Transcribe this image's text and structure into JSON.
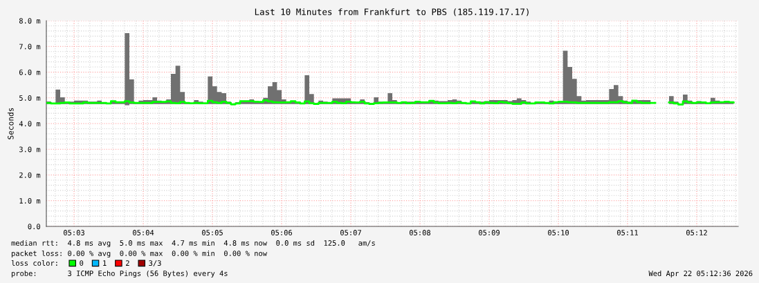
{
  "chart_data": {
    "type": "step",
    "title": "Last 10 Minutes from Frankfurt to PBS (185.119.17.17)",
    "ylabel": "Seconds",
    "xlim": [
      5.04333,
      5.21
    ],
    "ylim": [
      0,
      8
    ],
    "xticks": [
      {
        "value": 5.05,
        "label": "05:03"
      },
      {
        "value": 5.06667,
        "label": "05:04"
      },
      {
        "value": 5.08333,
        "label": "05:05"
      },
      {
        "value": 5.1,
        "label": "05:06"
      },
      {
        "value": 5.11667,
        "label": "05:07"
      },
      {
        "value": 5.13333,
        "label": "05:08"
      },
      {
        "value": 5.15,
        "label": "05:09"
      },
      {
        "value": 5.16667,
        "label": "05:10"
      },
      {
        "value": 5.18333,
        "label": "05:11"
      },
      {
        "value": 5.2,
        "label": "05:12"
      }
    ],
    "yticks": [
      {
        "value": 0,
        "label": "0.0"
      },
      {
        "value": 1,
        "label": "1.0 m"
      },
      {
        "value": 2,
        "label": "2.0 m"
      },
      {
        "value": 3,
        "label": "3.0 m"
      },
      {
        "value": 4,
        "label": "4.0 m"
      },
      {
        "value": 5,
        "label": "5.0 m"
      },
      {
        "value": 6,
        "label": "6.0 m"
      },
      {
        "value": 7,
        "label": "7.0 m"
      },
      {
        "value": 8,
        "label": "8.0 m"
      }
    ],
    "grid": true,
    "legend": "bottom left",
    "legend_title": "loss color:",
    "x": [
      5.04333,
      5.04444,
      5.04556,
      5.04667,
      5.04778,
      5.04889,
      5.05,
      5.05111,
      5.05222,
      5.05333,
      5.05444,
      5.05556,
      5.05667,
      5.05778,
      5.05889,
      5.06,
      5.06111,
      5.06222,
      5.06333,
      5.06444,
      5.06556,
      5.06667,
      5.06778,
      5.06889,
      5.07,
      5.07111,
      5.07222,
      5.07333,
      5.07444,
      5.07556,
      5.07667,
      5.07778,
      5.07889,
      5.08,
      5.08111,
      5.08222,
      5.08333,
      5.08444,
      5.08556,
      5.08667,
      5.08778,
      5.08889,
      5.09,
      5.09111,
      5.09222,
      5.09333,
      5.09444,
      5.09556,
      5.09667,
      5.09778,
      5.09889,
      5.1,
      5.10111,
      5.10222,
      5.10333,
      5.10444,
      5.10556,
      5.10667,
      5.10778,
      5.10889,
      5.11,
      5.11111,
      5.11222,
      5.11333,
      5.11444,
      5.11556,
      5.11667,
      5.11778,
      5.11889,
      5.12,
      5.12111,
      5.12222,
      5.12333,
      5.12444,
      5.12556,
      5.12667,
      5.12778,
      5.12889,
      5.13,
      5.13111,
      5.13222,
      5.13333,
      5.13444,
      5.13556,
      5.13667,
      5.13778,
      5.13889,
      5.14,
      5.14111,
      5.14222,
      5.14333,
      5.14444,
      5.14556,
      5.14667,
      5.14778,
      5.14889,
      5.15,
      5.15111,
      5.15222,
      5.15333,
      5.15444,
      5.15556,
      5.15667,
      5.15778,
      5.15889,
      5.16,
      5.16111,
      5.16222,
      5.16333,
      5.16444,
      5.16556,
      5.16667,
      5.16778,
      5.16889,
      5.17,
      5.17111,
      5.17222,
      5.17333,
      5.17444,
      5.17556,
      5.17667,
      5.17778,
      5.17889,
      5.18,
      5.18111,
      5.18222,
      5.18333,
      5.18444,
      5.18556,
      5.18667,
      5.18778,
      5.18889,
      5.19,
      5.19111,
      5.19222,
      5.19333,
      5.19444,
      5.19556,
      5.19667,
      5.19778,
      5.19889,
      5.2,
      5.20111,
      5.20222,
      5.20333,
      5.20444,
      5.20556,
      5.20667,
      5.20778,
      5.20889
    ],
    "series": [
      {
        "name": "0",
        "color": "#00ff00",
        "values": [
          4.8,
          4.78,
          4.78,
          4.8,
          4.82,
          4.78,
          4.78,
          4.78,
          4.82,
          4.8,
          4.8,
          4.8,
          4.8,
          4.78,
          4.87,
          4.83,
          4.83,
          4.87,
          4.82,
          4.8,
          4.8,
          4.8,
          4.8,
          4.84,
          4.84,
          4.84,
          4.86,
          4.8,
          4.79,
          4.84,
          4.8,
          4.79,
          4.8,
          4.79,
          4.79,
          4.88,
          4.83,
          4.8,
          4.85,
          4.8,
          4.75,
          4.78,
          4.87,
          4.87,
          4.87,
          4.85,
          4.84,
          4.9,
          4.86,
          4.83,
          4.82,
          4.82,
          4.83,
          4.87,
          4.82,
          4.78,
          4.86,
          4.79,
          4.76,
          4.8,
          4.8,
          4.8,
          4.85,
          4.8,
          4.79,
          4.85,
          4.83,
          4.82,
          4.85,
          4.78,
          4.76,
          4.79,
          4.81,
          4.82,
          4.82,
          4.82,
          4.8,
          4.83,
          4.79,
          4.8,
          4.85,
          4.83,
          4.83,
          4.88,
          4.82,
          4.79,
          4.79,
          4.8,
          4.79,
          4.82,
          4.8,
          4.78,
          4.86,
          4.83,
          4.78,
          4.83,
          4.8,
          4.79,
          4.84,
          4.82,
          4.79,
          4.77,
          4.77,
          4.82,
          4.78,
          4.78,
          4.82,
          4.82,
          4.8,
          4.78,
          4.83,
          4.85,
          4.85,
          4.83,
          4.82,
          4.8,
          4.8,
          4.8,
          4.8,
          4.8,
          4.8,
          4.8,
          4.83,
          4.83,
          4.87,
          4.83,
          4.8,
          4.89,
          4.83,
          4.8,
          4.8,
          4.8,
          null,
          null,
          null,
          4.82,
          4.78,
          4.74,
          4.86,
          4.82,
          4.8,
          4.83,
          4.82,
          4.79,
          4.82,
          4.83,
          4.83,
          4.85,
          4.83,
          4.82
        ],
        "lower": [
          4.76,
          4.75,
          4.75,
          4.76,
          4.76,
          4.75,
          4.75,
          4.75,
          4.76,
          4.76,
          4.76,
          4.76,
          4.76,
          4.75,
          4.76,
          4.76,
          4.76,
          4.71,
          4.76,
          4.76,
          4.76,
          4.76,
          4.76,
          4.76,
          4.76,
          4.76,
          4.76,
          4.76,
          4.75,
          4.76,
          4.76,
          4.75,
          4.76,
          4.75,
          4.75,
          4.76,
          4.76,
          4.76,
          4.76,
          4.76,
          4.72,
          4.75,
          4.76,
          4.76,
          4.76,
          4.76,
          4.76,
          4.76,
          4.76,
          4.76,
          4.76,
          4.76,
          4.76,
          4.76,
          4.76,
          4.75,
          4.76,
          4.76,
          4.73,
          4.76,
          4.76,
          4.76,
          4.76,
          4.76,
          4.75,
          4.76,
          4.76,
          4.76,
          4.76,
          4.75,
          4.73,
          4.75,
          4.76,
          4.76,
          4.76,
          4.76,
          4.76,
          4.76,
          4.75,
          4.76,
          4.76,
          4.76,
          4.76,
          4.76,
          4.76,
          4.75,
          4.75,
          4.76,
          4.75,
          4.76,
          4.76,
          4.75,
          4.76,
          4.76,
          4.75,
          4.76,
          4.76,
          4.75,
          4.76,
          4.76,
          4.75,
          4.74,
          4.74,
          4.76,
          4.75,
          4.75,
          4.76,
          4.76,
          4.76,
          4.75,
          4.76,
          4.76,
          4.76,
          4.76,
          4.76,
          4.76,
          4.76,
          4.76,
          4.76,
          4.76,
          4.76,
          4.76,
          4.76,
          4.76,
          4.76,
          4.76,
          4.76,
          4.76,
          4.76,
          4.76,
          4.76,
          4.76,
          null,
          null,
          null,
          4.76,
          4.75,
          4.72,
          4.76,
          4.76,
          4.76,
          4.76,
          4.76,
          4.75,
          4.76,
          4.76,
          4.76,
          4.76,
          4.76,
          4.76
        ],
        "upper": [
          4.86,
          4.8,
          5.32,
          5.02,
          4.85,
          4.85,
          4.89,
          4.89,
          4.89,
          4.85,
          4.85,
          4.89,
          4.8,
          4.8,
          4.87,
          4.85,
          4.85,
          7.52,
          5.72,
          4.83,
          4.89,
          4.91,
          4.91,
          5.02,
          4.89,
          4.85,
          4.94,
          5.93,
          6.25,
          5.23,
          4.83,
          4.8,
          4.91,
          4.85,
          4.8,
          5.83,
          5.45,
          5.23,
          5.18,
          4.85,
          4.76,
          4.83,
          4.89,
          4.89,
          4.94,
          4.85,
          4.85,
          5.0,
          5.45,
          5.61,
          5.3,
          4.94,
          4.84,
          4.87,
          4.82,
          4.8,
          5.88,
          5.15,
          4.8,
          4.89,
          4.85,
          4.82,
          4.98,
          4.98,
          4.98,
          4.98,
          4.85,
          4.83,
          4.94,
          4.83,
          4.8,
          5.02,
          4.85,
          4.83,
          5.18,
          4.91,
          4.8,
          4.85,
          4.85,
          4.85,
          4.87,
          4.83,
          4.83,
          4.89,
          4.89,
          4.87,
          4.87,
          4.91,
          4.94,
          4.89,
          4.82,
          4.8,
          4.87,
          4.85,
          4.85,
          4.87,
          4.91,
          4.91,
          4.91,
          4.91,
          4.87,
          4.91,
          4.98,
          4.91,
          4.85,
          4.8,
          4.82,
          4.82,
          4.8,
          4.89,
          4.83,
          4.85,
          6.83,
          6.2,
          5.74,
          5.07,
          4.89,
          4.91,
          4.91,
          4.91,
          4.91,
          4.91,
          5.34,
          5.5,
          5.07,
          4.89,
          4.85,
          4.89,
          4.91,
          4.91,
          4.91,
          4.91,
          null,
          null,
          null,
          5.07,
          4.85,
          4.76,
          5.13,
          4.89,
          4.82,
          4.87,
          4.85,
          4.8,
          5.0,
          4.89,
          4.83,
          4.87,
          4.83,
          4.83
        ]
      },
      {
        "name": "1",
        "color": "#00b8ff",
        "values": [
          null,
          null,
          null,
          null,
          null,
          null,
          null,
          null,
          null,
          null,
          null,
          null,
          null,
          null,
          null,
          null,
          null,
          null,
          null,
          null,
          null,
          null,
          null,
          null,
          null,
          null,
          null,
          null,
          null,
          null,
          null,
          null,
          null,
          null,
          null,
          null,
          null,
          null,
          null,
          null,
          null,
          null,
          null,
          null,
          null,
          null,
          null,
          null,
          null,
          null,
          null,
          null,
          null,
          null,
          null,
          null,
          null,
          null,
          null,
          null,
          null,
          null,
          null,
          null,
          null,
          null,
          null,
          null,
          null,
          null,
          null,
          null,
          null,
          null,
          null,
          null,
          null,
          null,
          null,
          null,
          null,
          null,
          null,
          null,
          null,
          null,
          null,
          null,
          null,
          null,
          null,
          null,
          null,
          null,
          null,
          null,
          null,
          null,
          null,
          null,
          null,
          null,
          null,
          null,
          null,
          null,
          null,
          null,
          null,
          null,
          null,
          null,
          null,
          null,
          null,
          null,
          null,
          null,
          null,
          null,
          null,
          null,
          null,
          null,
          null,
          null,
          null,
          null,
          null,
          null,
          null,
          null,
          null,
          null,
          null,
          null,
          null,
          null,
          null,
          null,
          null,
          null,
          null,
          null,
          null,
          null,
          null,
          null,
          null,
          null
        ]
      },
      {
        "name": "2",
        "color": "#ff0000",
        "values": [
          null,
          null,
          null,
          null,
          null,
          null,
          null,
          null,
          null,
          null,
          null,
          null,
          null,
          null,
          null,
          null,
          null,
          null,
          null,
          null,
          null,
          null,
          null,
          null,
          null,
          null,
          null,
          null,
          null,
          null,
          null,
          null,
          null,
          null,
          null,
          null,
          null,
          null,
          null,
          null,
          null,
          null,
          null,
          null,
          null,
          null,
          null,
          null,
          null,
          null,
          null,
          null,
          null,
          null,
          null,
          null,
          null,
          null,
          null,
          null,
          null,
          null,
          null,
          null,
          null,
          null,
          null,
          null,
          null,
          null,
          null,
          null,
          null,
          null,
          null,
          null,
          null,
          null,
          null,
          null,
          null,
          null,
          null,
          null,
          null,
          null,
          null,
          null,
          null,
          null,
          null,
          null,
          null,
          null,
          null,
          null,
          null,
          null,
          null,
          null,
          null,
          null,
          null,
          null,
          null,
          null,
          null,
          null,
          null,
          null,
          null,
          null,
          null,
          null,
          null,
          null,
          null,
          null,
          null,
          null,
          null,
          null,
          null,
          null,
          null,
          null,
          null,
          null,
          null,
          null,
          null,
          null,
          null,
          null,
          null,
          null,
          null,
          null,
          null,
          null,
          null,
          null,
          null,
          null,
          null,
          null,
          null,
          null,
          null,
          null
        ]
      },
      {
        "name": "3/3",
        "color": "#a00000",
        "values": [
          null,
          null,
          null,
          null,
          null,
          null,
          null,
          null,
          null,
          null,
          null,
          null,
          null,
          null,
          null,
          null,
          null,
          null,
          null,
          null,
          null,
          null,
          null,
          null,
          null,
          null,
          null,
          null,
          null,
          null,
          null,
          null,
          null,
          null,
          null,
          null,
          null,
          null,
          null,
          null,
          null,
          null,
          null,
          null,
          null,
          null,
          null,
          null,
          null,
          null,
          null,
          null,
          null,
          null,
          null,
          null,
          null,
          null,
          null,
          null,
          null,
          null,
          null,
          null,
          null,
          null,
          null,
          null,
          null,
          null,
          null,
          null,
          null,
          null,
          null,
          null,
          null,
          null,
          null,
          null,
          null,
          null,
          null,
          null,
          null,
          null,
          null,
          null,
          null,
          null,
          null,
          null,
          null,
          null,
          null,
          null,
          null,
          null,
          null,
          null,
          null,
          null,
          null,
          null,
          null,
          null,
          null,
          null,
          null,
          null,
          null,
          null,
          null,
          null,
          null,
          null,
          null,
          null,
          null,
          null,
          null,
          null,
          null,
          null,
          null,
          null,
          null,
          null,
          null,
          null,
          null,
          null,
          null,
          null,
          null,
          null,
          null,
          null,
          null,
          null,
          null,
          null,
          null,
          null,
          null,
          null,
          null,
          null,
          null,
          null
        ]
      }
    ],
    "annotations": [
      "median rtt:  4.8 ms avg  5.0 ms max  4.7 ms min  4.8 ms now  0.0 ms sd  125.0   am/s",
      "packet loss: 0.00 % avg  0.00 % max  0.00 % min  0.00 % now",
      "probe:       3 ICMP Echo Pings (56 Bytes) every 4s",
      "Wed Apr 22 05:12:36 2026"
    ]
  }
}
